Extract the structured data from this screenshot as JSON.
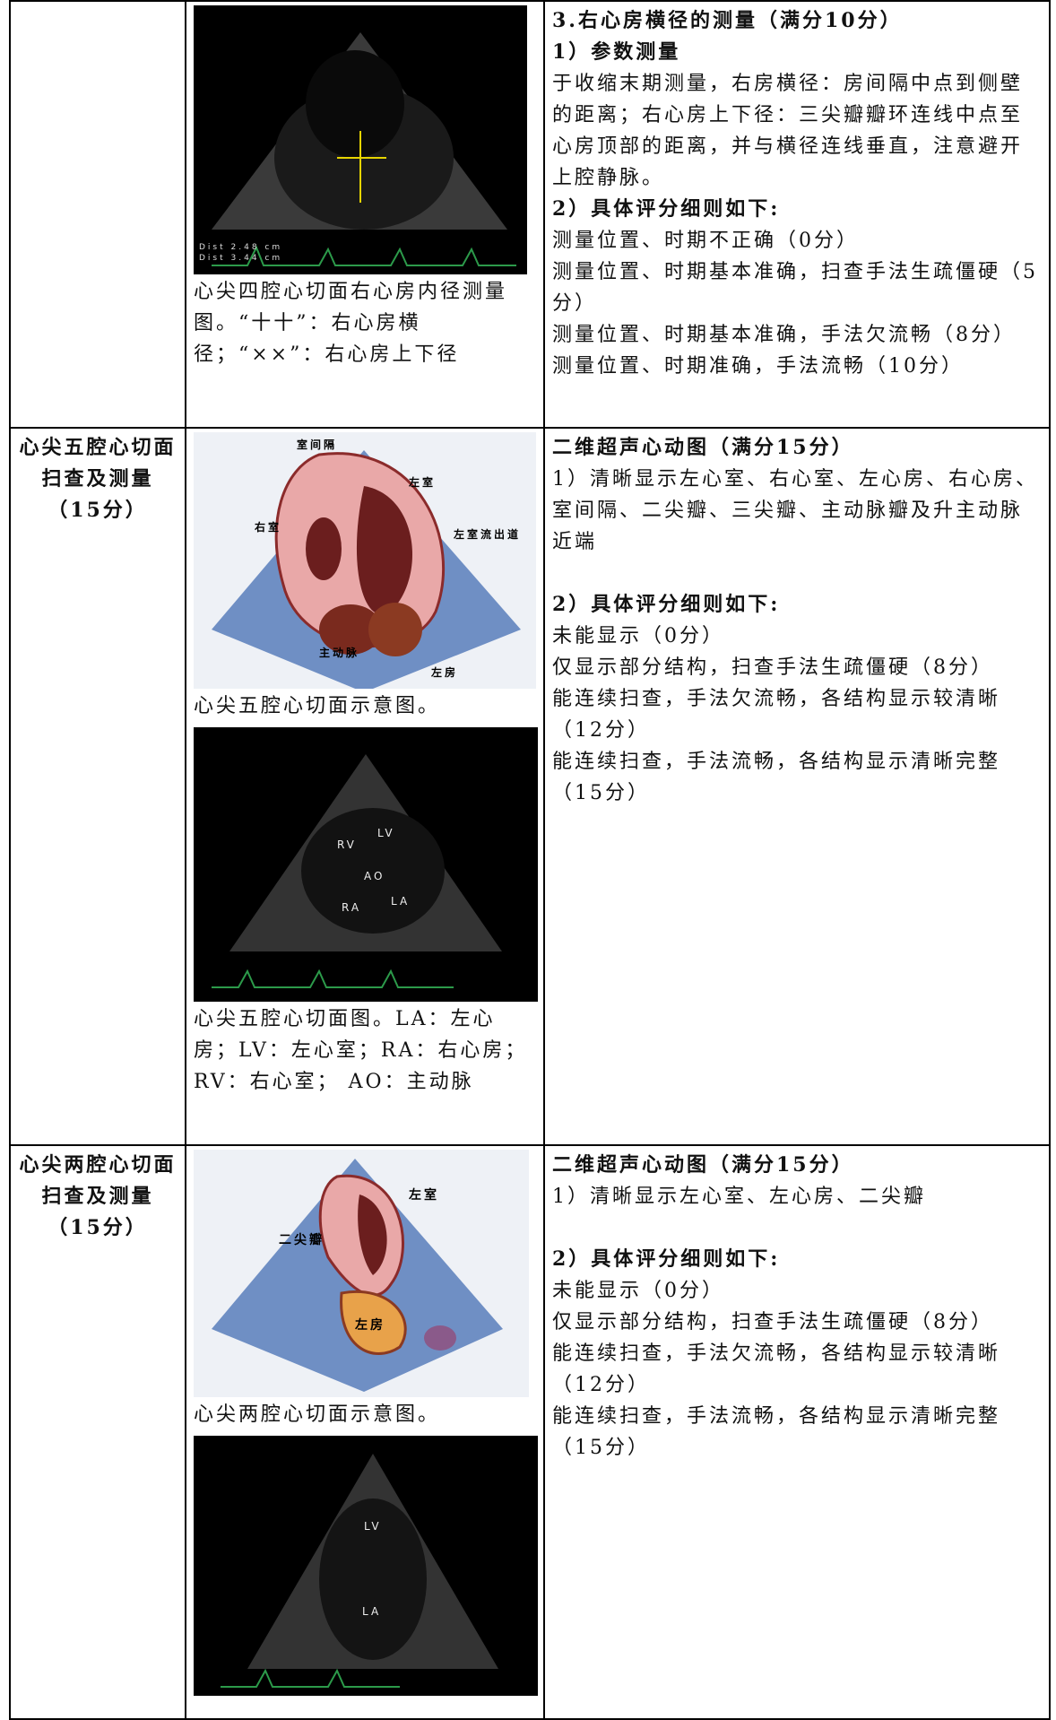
{
  "table": {
    "rows": [
      {
        "figures": [
          {
            "labels": [
              "Dist  2.48 cm",
              "Dist  3.44 cm"
            ],
            "caption": "心尖四腔心切面右心房内径测量图。“十十”：右心房横径；“××”：右心房上下径"
          }
        ],
        "criteria": {
          "title": "3.右心房横径的测量（满分10分）",
          "sub1": "1）参数测量",
          "text1": "于收缩末期测量，右房横径：房间隔中点到侧壁的距离；右心房上下径：三尖瓣瓣环连线中点至心房顶部的距离，并与横径连线垂直，注意避开上腔静脉。",
          "sub2": "2）具体评分细则如下:",
          "items": [
            "测量位置、时期不正确（0分）",
            "测量位置、时期基本准确，扫查手法生疏僵硬（5分）",
            "测量位置、时期基本准确，手法欠流畅（8分）",
            "测量位置、时期准确，手法流畅（10分）"
          ]
        }
      },
      {
        "section": "心尖五腔心切面扫查及测量（15分）",
        "figures": [
          {
            "labels": [
              "室间隔",
              "左室",
              "右室",
              "左室流出道",
              "主动脉",
              "左房"
            ],
            "caption": "心尖五腔心切面示意图。"
          },
          {
            "labels": [
              "RV",
              "LV",
              "AO",
              "RA",
              "LA"
            ],
            "caption": "心尖五腔心切面图。LA：左心房；LV：左心室；RA：右心房；RV：右心室； AO：主动脉"
          }
        ],
        "criteria": {
          "title": "二维超声心动图（满分15分）",
          "sub1": "1）清晰显示左心室、右心室、左心房、右心房、室间隔、二尖瓣、三尖瓣、主动脉瓣及升主动脉近端",
          "sub2": "2）具体评分细则如下:",
          "items": [
            "未能显示（0分）",
            "仅显示部分结构，扫查手法生疏僵硬（8分）",
            "能连续扫查，手法欠流畅，各结构显示较清晰（12分）",
            "能连续扫查，手法流畅，各结构显示清晰完整（15分）"
          ]
        }
      },
      {
        "section": "心尖两腔心切面扫查及测量（15分）",
        "figures": [
          {
            "labels": [
              "左室",
              "二尖瓣",
              "左房"
            ],
            "caption": "心尖两腔心切面示意图。"
          },
          {
            "labels": [
              "LV",
              "LA"
            ]
          }
        ],
        "criteria": {
          "title": "二维超声心动图（满分15分）",
          "sub1": "1）清晰显示左心室、左心房、二尖瓣",
          "sub2": "2）具体评分细则如下:",
          "items": [
            "未能显示（0分）",
            "仅显示部分结构，扫查手法生疏僵硬（8分）",
            "能连续扫查，手法欠流畅，各结构显示较清晰（12分）",
            "能连续扫查，手法流畅，各结构显示清晰完整（15分）"
          ]
        }
      }
    ]
  }
}
